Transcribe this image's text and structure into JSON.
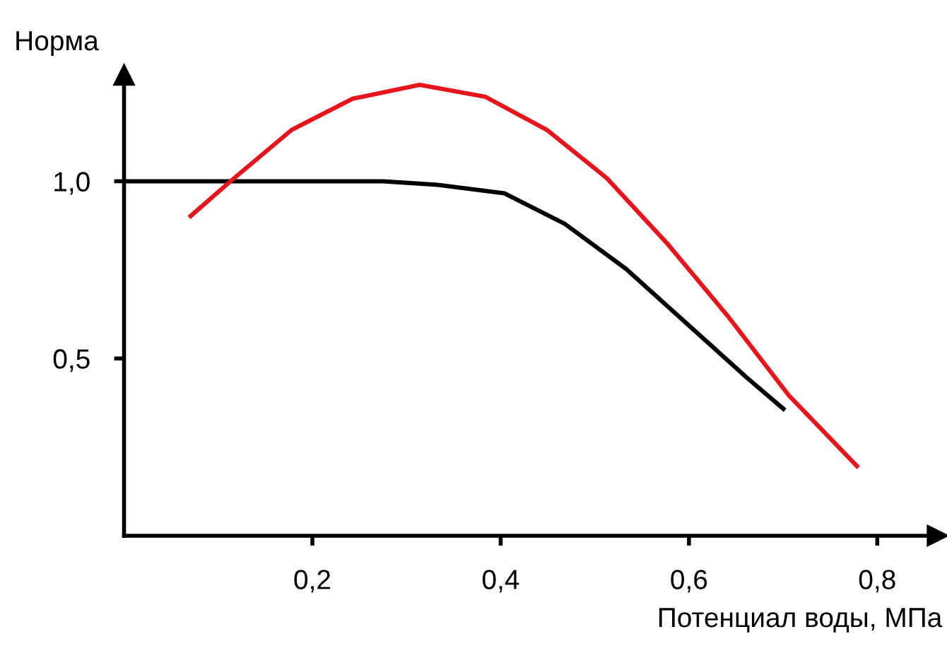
{
  "chart_data": {
    "type": "line",
    "ylabel": "Норма",
    "xlabel": "Потенциал воды, МПа",
    "xlim": [
      0,
      0.864
    ],
    "ylim": [
      0,
      1.3
    ],
    "xticks": [
      {
        "value": 0.2,
        "label": "0,2"
      },
      {
        "value": 0.4,
        "label": "0,4"
      },
      {
        "value": 0.6,
        "label": "0,6"
      },
      {
        "value": 0.8,
        "label": "0,8"
      }
    ],
    "yticks": [
      {
        "value": 0.5,
        "label": "0,5"
      },
      {
        "value": 1.0,
        "label": "1,0"
      }
    ],
    "grid": false,
    "legend": false,
    "marker": "none",
    "line_style": "solid",
    "series": [
      {
        "color": "#000000",
        "x": [
          0,
          0.275,
          0.333,
          0.404,
          0.468,
          0.533,
          0.597,
          0.661,
          0.702
        ],
        "values": [
          1.0,
          1.0,
          0.99,
          0.966,
          0.88,
          0.753,
          0.6,
          0.447,
          0.354
        ]
      },
      {
        "color": "#e8141c",
        "x": [
          0.069,
          0.113,
          0.178,
          0.243,
          0.314,
          0.384,
          0.449,
          0.513,
          0.578,
          0.642,
          0.706,
          0.78
        ],
        "values": [
          0.898,
          1.0,
          1.145,
          1.233,
          1.272,
          1.238,
          1.145,
          1.008,
          0.821,
          0.617,
          0.396,
          0.192
        ]
      }
    ]
  }
}
